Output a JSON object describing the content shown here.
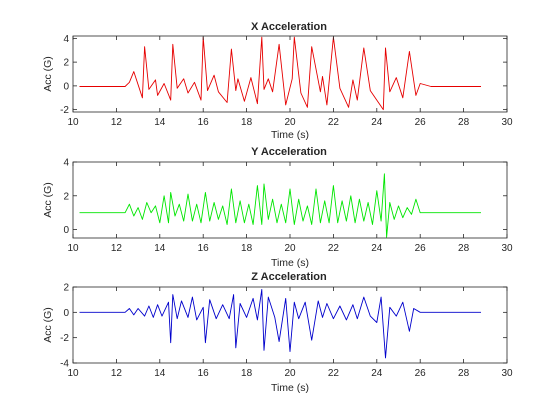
{
  "figure": {
    "panels": [
      {
        "title": "X Acceleration",
        "xlabel": "Time (s)",
        "ylabel": "Acc (G)",
        "color": "#e60000",
        "xlim": [
          10,
          30
        ],
        "ylim": [
          -2.2,
          4.2
        ],
        "xticks": [
          "10",
          "12",
          "14",
          "16",
          "18",
          "20",
          "22",
          "24",
          "26",
          "28",
          "30"
        ],
        "yticks": [
          "-2",
          "0",
          "2",
          "4"
        ]
      },
      {
        "title": "Y Acceleration",
        "xlabel": "Time (s)",
        "ylabel": "Acc (G)",
        "color": "#00e600",
        "xlim": [
          10,
          30
        ],
        "ylim": [
          -0.5,
          4
        ],
        "xticks": [
          "10",
          "12",
          "14",
          "16",
          "18",
          "20",
          "22",
          "24",
          "26",
          "28",
          "30"
        ],
        "yticks": [
          "0",
          "2",
          "4"
        ]
      },
      {
        "title": "Z Acceleration",
        "xlabel": "Time (s)",
        "ylabel": "Acc (G)",
        "color": "#0000cc",
        "xlim": [
          10,
          30
        ],
        "ylim": [
          -4,
          2
        ],
        "xticks": [
          "10",
          "12",
          "14",
          "16",
          "18",
          "20",
          "22",
          "24",
          "26",
          "28",
          "30"
        ],
        "yticks": [
          "-4",
          "-2",
          "0",
          "2"
        ]
      }
    ]
  },
  "chart_data": [
    {
      "type": "line",
      "title": "X Acceleration",
      "xlabel": "Time (s)",
      "ylabel": "Acc (G)",
      "xlim": [
        10,
        30
      ],
      "ylim": [
        -2.2,
        4.2
      ],
      "color": "#e60000",
      "x": [
        10.3,
        12.4,
        12.6,
        12.8,
        13.0,
        13.2,
        13.3,
        13.5,
        13.8,
        13.9,
        14.2,
        14.5,
        14.6,
        14.8,
        15.1,
        15.3,
        15.6,
        15.9,
        16.0,
        16.2,
        16.5,
        16.7,
        17.1,
        17.3,
        17.5,
        17.6,
        17.9,
        18.2,
        18.5,
        18.7,
        18.8,
        19.0,
        19.2,
        19.5,
        19.8,
        20.1,
        20.2,
        20.5,
        20.8,
        21.0,
        21.4,
        21.5,
        21.7,
        22.0,
        22.3,
        22.7,
        22.9,
        23.1,
        23.4,
        23.7,
        24.0,
        24.3,
        24.4,
        24.6,
        24.9,
        25.2,
        25.5,
        25.8,
        26.0,
        26.5,
        28.8
      ],
      "y": [
        -0.05,
        -0.05,
        0.3,
        1.2,
        0.1,
        -1.0,
        3.3,
        -0.3,
        0.5,
        -0.8,
        0.2,
        -1.2,
        3.5,
        -0.2,
        0.6,
        -0.6,
        0.3,
        -1.2,
        4.1,
        -0.4,
        0.9,
        -0.5,
        -1.4,
        3.1,
        -0.4,
        0.6,
        -1.3,
        0.7,
        -1.5,
        4.1,
        -0.3,
        0.6,
        -0.5,
        3.5,
        -1.6,
        0.6,
        4.1,
        -0.6,
        -1.8,
        3.3,
        -0.5,
        0.8,
        -1.6,
        4.1,
        -0.2,
        -1.8,
        0.5,
        -1.2,
        3.2,
        -0.4,
        -1.2,
        -2.0,
        3.2,
        -0.5,
        0.7,
        -1.0,
        2.9,
        -0.8,
        0.2,
        -0.05,
        -0.05
      ]
    },
    {
      "type": "line",
      "title": "Y Acceleration",
      "xlabel": "Time (s)",
      "ylabel": "Acc (G)",
      "xlim": [
        10,
        30
      ],
      "ylim": [
        -0.5,
        4
      ],
      "color": "#00e600",
      "x": [
        10.3,
        12.4,
        12.6,
        12.8,
        13.0,
        13.2,
        13.4,
        13.6,
        13.8,
        14.0,
        14.2,
        14.4,
        14.5,
        14.7,
        14.9,
        15.1,
        15.3,
        15.5,
        15.7,
        15.9,
        16.1,
        16.3,
        16.5,
        16.7,
        16.9,
        17.1,
        17.3,
        17.5,
        17.7,
        17.9,
        18.1,
        18.3,
        18.5,
        18.7,
        18.8,
        19.0,
        19.2,
        19.4,
        19.6,
        19.8,
        20.0,
        20.2,
        20.4,
        20.6,
        20.8,
        21.0,
        21.2,
        21.4,
        21.6,
        21.8,
        22.0,
        22.2,
        22.4,
        22.6,
        22.8,
        23.0,
        23.2,
        23.4,
        23.6,
        23.8,
        24.0,
        24.2,
        24.35,
        24.45,
        24.6,
        24.8,
        25.0,
        25.2,
        25.4,
        25.6,
        25.8,
        26.0,
        28.8
      ],
      "y": [
        1.0,
        1.0,
        1.5,
        0.8,
        1.3,
        0.6,
        1.6,
        1.0,
        1.4,
        0.4,
        2.0,
        0.4,
        2.2,
        0.8,
        1.5,
        0.5,
        2.1,
        0.5,
        1.5,
        0.4,
        2.2,
        0.5,
        1.6,
        0.6,
        1.4,
        0.3,
        2.4,
        0.4,
        1.7,
        0.4,
        1.5,
        0.3,
        2.6,
        0.3,
        2.7,
        0.6,
        1.8,
        0.4,
        1.5,
        0.4,
        2.4,
        0.3,
        1.8,
        0.5,
        1.4,
        0.3,
        2.4,
        0.4,
        1.7,
        0.4,
        2.6,
        0.4,
        1.7,
        0.5,
        2.0,
        0.4,
        1.8,
        0.5,
        1.6,
        0.3,
        2.3,
        0.5,
        3.3,
        -0.45,
        1.6,
        0.6,
        1.4,
        0.7,
        1.3,
        0.9,
        1.8,
        1.0,
        1.0
      ]
    },
    {
      "type": "line",
      "title": "Z Acceleration",
      "xlabel": "Time (s)",
      "ylabel": "Acc (G)",
      "xlim": [
        10,
        30
      ],
      "ylim": [
        -4,
        2
      ],
      "color": "#0000cc",
      "x": [
        10.3,
        12.4,
        12.6,
        12.8,
        13.0,
        13.3,
        13.5,
        13.7,
        13.9,
        14.1,
        14.4,
        14.5,
        14.6,
        14.8,
        15.0,
        15.3,
        15.5,
        15.7,
        16.0,
        16.1,
        16.3,
        16.6,
        16.9,
        17.2,
        17.4,
        17.5,
        17.7,
        18.0,
        18.3,
        18.5,
        18.7,
        18.8,
        19.0,
        19.3,
        19.5,
        19.8,
        20.0,
        20.2,
        20.4,
        20.7,
        21.0,
        21.3,
        21.5,
        21.7,
        22.0,
        22.3,
        22.6,
        22.9,
        23.1,
        23.4,
        23.7,
        24.0,
        24.2,
        24.4,
        24.6,
        24.9,
        25.2,
        25.5,
        25.7,
        26.0,
        28.8
      ],
      "y": [
        0.0,
        0.0,
        0.3,
        -0.2,
        0.3,
        -0.3,
        0.5,
        -0.4,
        0.6,
        -0.3,
        0.8,
        -2.4,
        1.4,
        -0.5,
        0.9,
        -0.4,
        1.2,
        -0.6,
        0.4,
        -2.4,
        1.0,
        -0.5,
        0.6,
        -0.5,
        1.4,
        -2.8,
        0.7,
        -0.4,
        1.1,
        -0.6,
        1.8,
        -3.0,
        1.2,
        -0.4,
        -2.3,
        1.1,
        -3.1,
        0.8,
        -0.5,
        0.8,
        -2.2,
        0.9,
        -0.4,
        0.7,
        -0.5,
        0.5,
        -0.6,
        0.6,
        -0.5,
        1.2,
        -0.3,
        -0.8,
        1.2,
        -3.6,
        0.4,
        -0.3,
        0.8,
        -1.5,
        0.3,
        0.0,
        0.0
      ]
    }
  ]
}
